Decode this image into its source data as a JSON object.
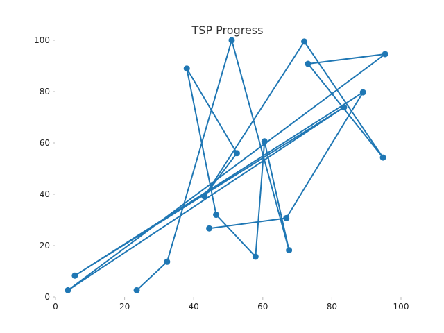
{
  "chart_data": {
    "type": "line",
    "title": "TSP Progress",
    "xlabel": "",
    "ylabel": "",
    "xlim": [
      0,
      100
    ],
    "ylim": [
      0,
      100
    ],
    "x_ticks": [
      0,
      20,
      40,
      60,
      80,
      100
    ],
    "y_ticks": [
      0,
      20,
      40,
      60,
      80,
      100
    ],
    "grid": false,
    "color": "#1f77b4",
    "markers": true,
    "series": [
      {
        "x": [
          23.5,
          32.3,
          51.0,
          67.6,
          60.5,
          57.9,
          46.5,
          38.0,
          52.5,
          43.1,
          72.0,
          94.8,
          73.1,
          95.4,
          3.6,
          83.5,
          5.6,
          89.0,
          66.8,
          44.5
        ],
        "y": [
          2.6,
          13.7,
          100.0,
          18.2,
          60.6,
          15.7,
          32.0,
          89.0,
          56.0,
          39.2,
          99.5,
          54.3,
          90.8,
          94.6,
          2.6,
          73.9,
          8.3,
          79.7,
          30.7,
          26.7
        ]
      }
    ]
  }
}
